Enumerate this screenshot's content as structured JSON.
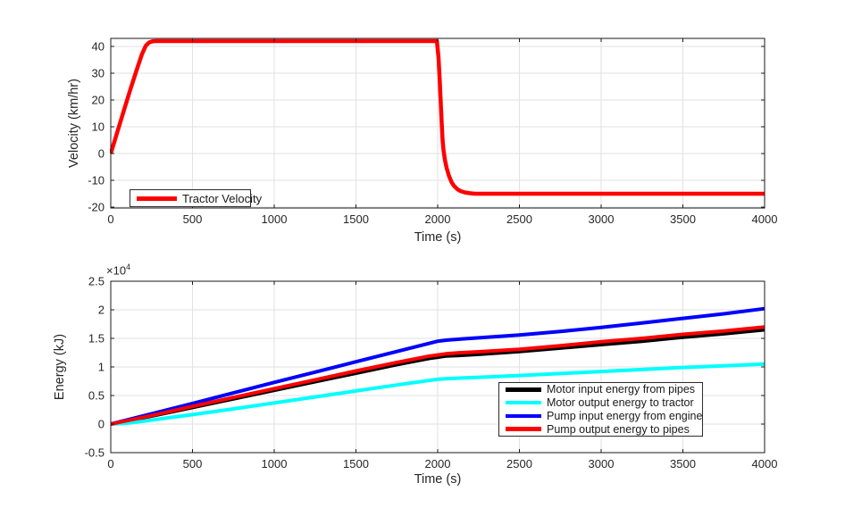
{
  "figure": {
    "background": "#ffffff",
    "text_color": "#262626",
    "axis_color": "#1a1a1a",
    "grid_color": "#e2e2e2"
  },
  "chart_data": [
    {
      "type": "line",
      "title": "",
      "xlabel": "Time (s)",
      "ylabel": "Velocity (km/hr)",
      "xlim": [
        0,
        4000
      ],
      "ylim": [
        -20.33,
        43.0
      ],
      "grid": true,
      "xticks": {
        "values": [
          0,
          500,
          1000,
          1500,
          2000,
          2500,
          3000,
          3500,
          4000
        ],
        "labels": [
          "0",
          "500",
          "1000",
          "1500",
          "2000",
          "2500",
          "3000",
          "3500",
          "4000"
        ]
      },
      "yticks": {
        "values": [
          -20,
          -10,
          0,
          10,
          20,
          30,
          40
        ],
        "labels": [
          "-20",
          "-10",
          "0",
          "10",
          "20",
          "30",
          "40"
        ]
      },
      "legend": {
        "position": "southwest",
        "entries": [
          {
            "label": "Tractor Velocity",
            "color": "#ff0000"
          }
        ]
      },
      "series": [
        {
          "name": "Tractor Velocity",
          "color": "#ff0000",
          "line_width": 4.5,
          "points": [
            [
              0,
              0
            ],
            [
              40,
              8
            ],
            [
              80,
              16
            ],
            [
              120,
              24
            ],
            [
              160,
              31.5
            ],
            [
              190,
              37
            ],
            [
              215,
              40.3
            ],
            [
              235,
              41.5
            ],
            [
              255,
              41.9
            ],
            [
              280,
              42
            ],
            [
              1995,
              42
            ],
            [
              2005,
              36
            ],
            [
              2012,
              28
            ],
            [
              2018,
              20
            ],
            [
              2024,
              12
            ],
            [
              2030,
              5
            ],
            [
              2036,
              1
            ],
            [
              2045,
              -2.5
            ],
            [
              2055,
              -5.5
            ],
            [
              2070,
              -8.5
            ],
            [
              2085,
              -10.7
            ],
            [
              2100,
              -12.1
            ],
            [
              2120,
              -13.3
            ],
            [
              2140,
              -14.0
            ],
            [
              2165,
              -14.5
            ],
            [
              2195,
              -14.8
            ],
            [
              2230,
              -15
            ],
            [
              4000,
              -15
            ]
          ]
        }
      ]
    },
    {
      "type": "line",
      "title": "",
      "xlabel": "Time (s)",
      "ylabel": "Energy (kJ)",
      "y_multiplier": {
        "base": "×10",
        "exponent": "4"
      },
      "y_scale_note": "y values are in units of 10^4 kJ",
      "xlim": [
        0,
        4000
      ],
      "ylim": [
        -0.5,
        2.5
      ],
      "grid": true,
      "xticks": {
        "values": [
          0,
          500,
          1000,
          1500,
          2000,
          2500,
          3000,
          3500,
          4000
        ],
        "labels": [
          "0",
          "500",
          "1000",
          "1500",
          "2000",
          "2500",
          "3000",
          "3500",
          "4000"
        ]
      },
      "yticks": {
        "values": [
          -0.5,
          0,
          0.5,
          1,
          1.5,
          2,
          2.5
        ],
        "labels": [
          "-0.5",
          "0",
          "0.5",
          "1",
          "1.5",
          "2",
          "2.5"
        ]
      },
      "legend": {
        "position": "southeast",
        "entries": [
          {
            "label": "Motor input energy from pipes",
            "color": "#000000"
          },
          {
            "label": "Motor output energy to tractor",
            "color": "#00ffff"
          },
          {
            "label": "Pump input energy from engine",
            "color": "#0000ff"
          },
          {
            "label": "Pump output energy to pipes",
            "color": "#ff0000"
          }
        ]
      },
      "series": [
        {
          "name": "Motor input energy from pipes",
          "color": "#000000",
          "line_width": 4,
          "points": [
            [
              0,
              0
            ],
            [
              250,
              0.14
            ],
            [
              500,
              0.29
            ],
            [
              750,
              0.44
            ],
            [
              1000,
              0.59
            ],
            [
              1250,
              0.74
            ],
            [
              1500,
              0.89
            ],
            [
              1750,
              1.04
            ],
            [
              1950,
              1.15
            ],
            [
              2000,
              1.17
            ],
            [
              2050,
              1.19
            ],
            [
              2120,
              1.2
            ],
            [
              2250,
              1.22
            ],
            [
              2500,
              1.27
            ],
            [
              2750,
              1.33
            ],
            [
              3000,
              1.39
            ],
            [
              3250,
              1.45
            ],
            [
              3500,
              1.52
            ],
            [
              3750,
              1.58
            ],
            [
              4000,
              1.65
            ]
          ]
        },
        {
          "name": "Motor output energy to tractor",
          "color": "#00ffff",
          "line_width": 4,
          "points": [
            [
              0,
              0
            ],
            [
              100,
              0.015
            ],
            [
              200,
              0.05
            ],
            [
              350,
              0.11
            ],
            [
              500,
              0.165
            ],
            [
              750,
              0.265
            ],
            [
              1000,
              0.37
            ],
            [
              1250,
              0.475
            ],
            [
              1500,
              0.58
            ],
            [
              1750,
              0.685
            ],
            [
              2000,
              0.785
            ],
            [
              2100,
              0.8
            ],
            [
              2300,
              0.825
            ],
            [
              2500,
              0.85
            ],
            [
              2750,
              0.885
            ],
            [
              3000,
              0.92
            ],
            [
              3250,
              0.955
            ],
            [
              3500,
              0.99
            ],
            [
              3750,
              1.02
            ],
            [
              4000,
              1.05
            ]
          ]
        },
        {
          "name": "Pump input energy from engine",
          "color": "#0000ff",
          "line_width": 4,
          "points": [
            [
              0,
              0
            ],
            [
              250,
              0.18
            ],
            [
              500,
              0.36
            ],
            [
              750,
              0.545
            ],
            [
              1000,
              0.73
            ],
            [
              1250,
              0.91
            ],
            [
              1500,
              1.09
            ],
            [
              1750,
              1.27
            ],
            [
              2000,
              1.45
            ],
            [
              2060,
              1.47
            ],
            [
              2150,
              1.49
            ],
            [
              2300,
              1.52
            ],
            [
              2500,
              1.56
            ],
            [
              2750,
              1.62
            ],
            [
              3000,
              1.69
            ],
            [
              3250,
              1.77
            ],
            [
              3500,
              1.85
            ],
            [
              3750,
              1.93
            ],
            [
              4000,
              2.02
            ]
          ]
        },
        {
          "name": "Pump output energy to pipes",
          "color": "#ff0000",
          "line_width": 4,
          "points": [
            [
              0,
              0
            ],
            [
              250,
              0.15
            ],
            [
              500,
              0.31
            ],
            [
              750,
              0.465
            ],
            [
              1000,
              0.62
            ],
            [
              1250,
              0.775
            ],
            [
              1500,
              0.93
            ],
            [
              1750,
              1.08
            ],
            [
              1950,
              1.19
            ],
            [
              2000,
              1.21
            ],
            [
              2050,
              1.23
            ],
            [
              2120,
              1.245
            ],
            [
              2250,
              1.265
            ],
            [
              2500,
              1.31
            ],
            [
              2750,
              1.37
            ],
            [
              3000,
              1.44
            ],
            [
              3250,
              1.5
            ],
            [
              3500,
              1.57
            ],
            [
              3750,
              1.63
            ],
            [
              4000,
              1.7
            ]
          ]
        }
      ]
    }
  ]
}
